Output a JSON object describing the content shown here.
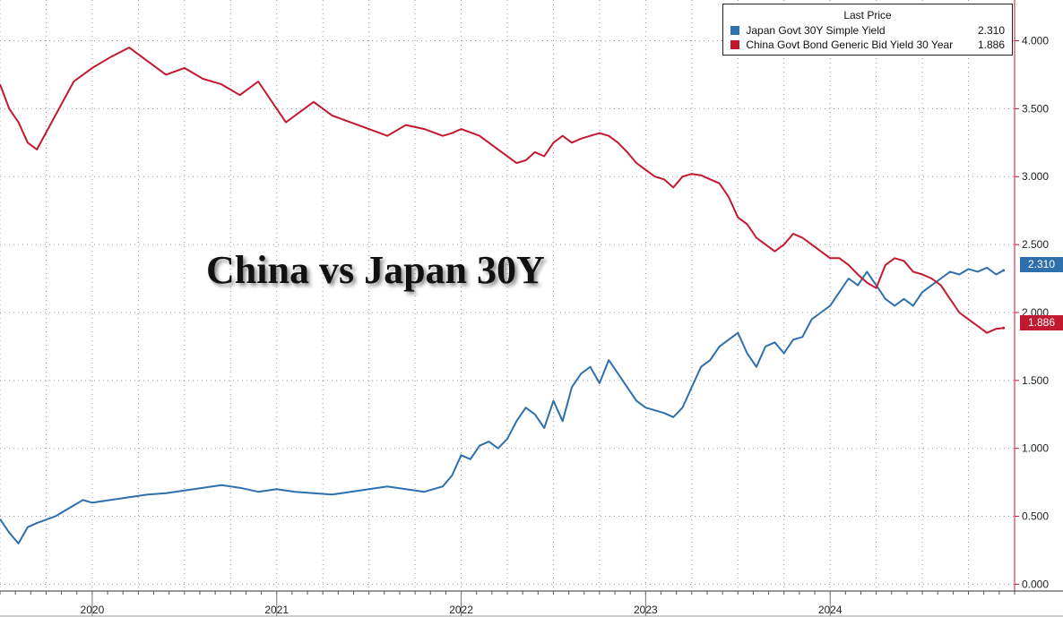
{
  "title": "China vs Japan 30Y",
  "legend": {
    "header": "Last Price",
    "items": [
      {
        "name": "Japan Govt 30Y Simple Yield",
        "value": "2.310",
        "color": "#2e6fad"
      },
      {
        "name": "China Govt Bond Generic Bid Yield 30 Year",
        "value": "1.886",
        "color": "#c3192f"
      }
    ]
  },
  "last_value_badges": [
    {
      "series": "Japan Govt 30Y Simple Yield",
      "label": "2.310"
    },
    {
      "series": "China Govt Bond Generic Bid Yield 30 Year",
      "label": "1.886"
    }
  ],
  "chart_data": {
    "type": "line",
    "title": "China vs Japan 30Y",
    "xlabel": "",
    "ylabel": "",
    "x_tick_labels": [
      "2020",
      "2021",
      "2022",
      "2023",
      "2024"
    ],
    "x_range": [
      2019.5,
      2025.0
    ],
    "y_tick_labels": [
      "0.000",
      "0.500",
      "1.000",
      "1.500",
      "2.000",
      "2.500",
      "3.000",
      "3.500",
      "4.000"
    ],
    "y_range": [
      -0.05,
      4.3
    ],
    "y_axis_side": "right",
    "grid": true,
    "legend_position": "top-right",
    "series": [
      {
        "name": "Japan Govt 30Y Simple Yield",
        "color": "#2e6fad",
        "x": [
          2019.5,
          2019.55,
          2019.6,
          2019.65,
          2019.7,
          2019.8,
          2019.9,
          2019.95,
          2020.0,
          2020.1,
          2020.2,
          2020.3,
          2020.4,
          2020.5,
          2020.6,
          2020.7,
          2020.8,
          2020.9,
          2021.0,
          2021.1,
          2021.2,
          2021.3,
          2021.4,
          2021.5,
          2021.6,
          2021.7,
          2021.8,
          2021.9,
          2021.95,
          2022.0,
          2022.05,
          2022.1,
          2022.15,
          2022.2,
          2022.25,
          2022.3,
          2022.35,
          2022.4,
          2022.45,
          2022.5,
          2022.55,
          2022.6,
          2022.65,
          2022.7,
          2022.75,
          2022.8,
          2022.85,
          2022.9,
          2022.95,
          2023.0,
          2023.05,
          2023.1,
          2023.15,
          2023.2,
          2023.25,
          2023.3,
          2023.35,
          2023.4,
          2023.45,
          2023.5,
          2023.55,
          2023.6,
          2023.65,
          2023.7,
          2023.75,
          2023.8,
          2023.85,
          2023.9,
          2023.95,
          2024.0,
          2024.05,
          2024.1,
          2024.15,
          2024.2,
          2024.25,
          2024.3,
          2024.35,
          2024.4,
          2024.45,
          2024.5,
          2024.55,
          2024.6,
          2024.65,
          2024.7,
          2024.75,
          2024.8,
          2024.85,
          2024.9,
          2024.94
        ],
        "values": [
          0.48,
          0.38,
          0.3,
          0.42,
          0.45,
          0.5,
          0.58,
          0.62,
          0.6,
          0.62,
          0.64,
          0.66,
          0.67,
          0.69,
          0.71,
          0.73,
          0.71,
          0.68,
          0.7,
          0.68,
          0.67,
          0.66,
          0.68,
          0.7,
          0.72,
          0.7,
          0.68,
          0.72,
          0.8,
          0.95,
          0.92,
          1.02,
          1.05,
          1.0,
          1.07,
          1.2,
          1.3,
          1.25,
          1.15,
          1.35,
          1.2,
          1.45,
          1.55,
          1.6,
          1.48,
          1.65,
          1.55,
          1.45,
          1.35,
          1.3,
          1.28,
          1.26,
          1.23,
          1.3,
          1.45,
          1.6,
          1.65,
          1.75,
          1.8,
          1.85,
          1.7,
          1.6,
          1.75,
          1.78,
          1.7,
          1.8,
          1.82,
          1.95,
          2.0,
          2.05,
          2.15,
          2.25,
          2.2,
          2.3,
          2.2,
          2.1,
          2.05,
          2.1,
          2.05,
          2.15,
          2.2,
          2.25,
          2.3,
          2.28,
          2.32,
          2.3,
          2.33,
          2.28,
          2.31
        ]
      },
      {
        "name": "China Govt Bond Generic Bid Yield 30 Year",
        "color": "#c3192f",
        "x": [
          2019.5,
          2019.55,
          2019.6,
          2019.65,
          2019.7,
          2019.8,
          2019.9,
          2019.95,
          2020.0,
          2020.1,
          2020.2,
          2020.3,
          2020.4,
          2020.5,
          2020.6,
          2020.7,
          2020.8,
          2020.9,
          2021.0,
          2021.05,
          2021.1,
          2021.2,
          2021.3,
          2021.4,
          2021.5,
          2021.6,
          2021.7,
          2021.8,
          2021.9,
          2021.95,
          2022.0,
          2022.1,
          2022.2,
          2022.3,
          2022.35,
          2022.4,
          2022.45,
          2022.5,
          2022.55,
          2022.6,
          2022.65,
          2022.7,
          2022.75,
          2022.8,
          2022.85,
          2022.9,
          2022.95,
          2023.0,
          2023.05,
          2023.1,
          2023.15,
          2023.2,
          2023.25,
          2023.3,
          2023.35,
          2023.4,
          2023.45,
          2023.5,
          2023.55,
          2023.6,
          2023.65,
          2023.7,
          2023.75,
          2023.8,
          2023.85,
          2023.9,
          2023.95,
          2024.0,
          2024.05,
          2024.1,
          2024.15,
          2024.2,
          2024.25,
          2024.3,
          2024.35,
          2024.4,
          2024.45,
          2024.5,
          2024.55,
          2024.6,
          2024.65,
          2024.7,
          2024.75,
          2024.8,
          2024.85,
          2024.9,
          2024.94
        ],
        "values": [
          3.68,
          3.5,
          3.4,
          3.25,
          3.2,
          3.45,
          3.7,
          3.75,
          3.8,
          3.88,
          3.95,
          3.85,
          3.75,
          3.8,
          3.72,
          3.68,
          3.6,
          3.7,
          3.5,
          3.4,
          3.45,
          3.55,
          3.45,
          3.4,
          3.35,
          3.3,
          3.38,
          3.35,
          3.3,
          3.32,
          3.35,
          3.3,
          3.2,
          3.1,
          3.12,
          3.18,
          3.15,
          3.25,
          3.3,
          3.25,
          3.28,
          3.3,
          3.32,
          3.3,
          3.25,
          3.18,
          3.1,
          3.05,
          3.0,
          2.98,
          2.92,
          3.0,
          3.02,
          3.01,
          2.98,
          2.95,
          2.85,
          2.7,
          2.65,
          2.55,
          2.5,
          2.45,
          2.5,
          2.58,
          2.55,
          2.5,
          2.45,
          2.4,
          2.4,
          2.35,
          2.28,
          2.22,
          2.18,
          2.35,
          2.4,
          2.38,
          2.3,
          2.28,
          2.25,
          2.2,
          2.1,
          2.0,
          1.95,
          1.9,
          1.85,
          1.88,
          1.886
        ]
      }
    ]
  }
}
